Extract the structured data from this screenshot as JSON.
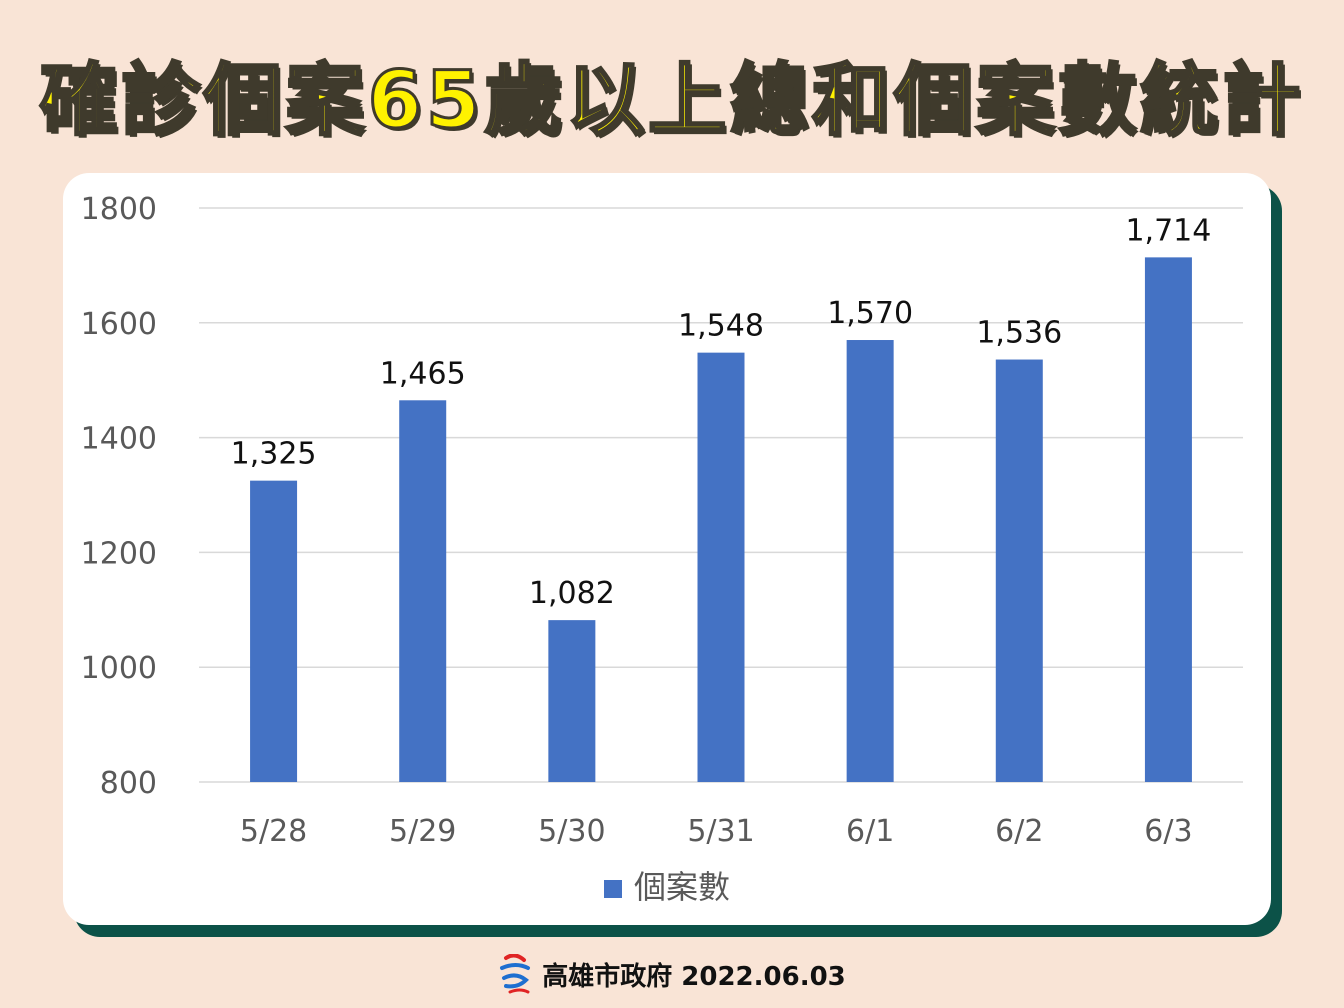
{
  "title": "確診個案65歲以上總和個案數統計",
  "footer": {
    "logo_icon": "kaohsiung-city-logo-icon",
    "text": "高雄市政府 2022.06.03"
  },
  "colors": {
    "background": "#f9e4d6",
    "bar": "#4472c4",
    "title_fill": "#fff200",
    "card_shadow": "#0c5248"
  },
  "chart_data": {
    "type": "bar",
    "categories": [
      "5/28",
      "5/29",
      "5/30",
      "5/31",
      "6/1",
      "6/2",
      "6/3"
    ],
    "series": [
      {
        "name": "個案數",
        "values": [
          1325,
          1465,
          1082,
          1548,
          1570,
          1536,
          1714
        ],
        "labels": [
          "1,325",
          "1,465",
          "1,082",
          "1,548",
          "1,570",
          "1,536",
          "1,714"
        ]
      }
    ],
    "ylim": [
      800,
      1800
    ],
    "yticks": [
      800,
      1000,
      1200,
      1400,
      1600,
      1800
    ],
    "grid": true,
    "legend": "bottom-center"
  }
}
